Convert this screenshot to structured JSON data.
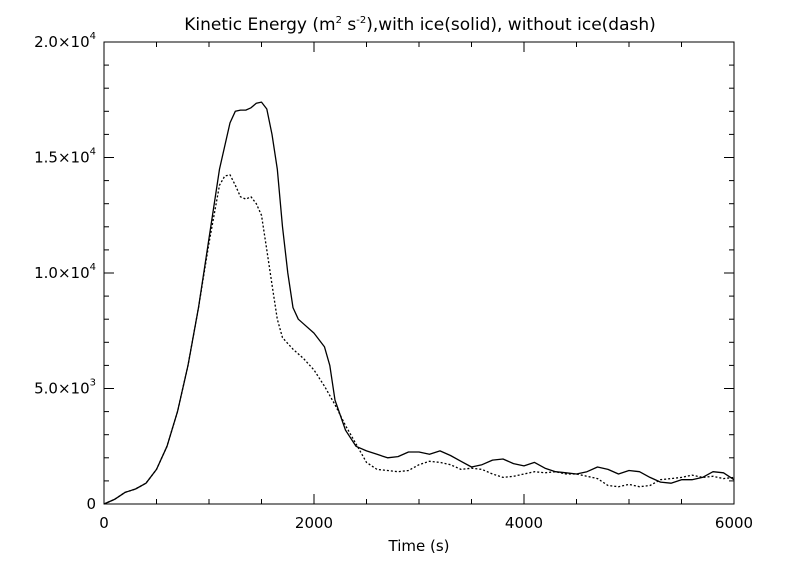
{
  "chart_data": {
    "type": "line",
    "title": {
      "part1": "Kinetic Energy (m",
      "exp1": "2",
      "part2": " s",
      "exp2": "-2",
      "part3": "),with ice(solid), without ice(dash)"
    },
    "xlabel": "Time (s)",
    "ylabel": "",
    "xlim": [
      0,
      6000
    ],
    "ylim": [
      0,
      20000
    ],
    "x_ticks": [
      {
        "value": 0,
        "label": "0"
      },
      {
        "value": 2000,
        "label": "2000"
      },
      {
        "value": 4000,
        "label": "4000"
      },
      {
        "value": 6000,
        "label": "6000"
      }
    ],
    "y_ticks": [
      {
        "value": 0,
        "mantissa": "0",
        "exp": ""
      },
      {
        "value": 5000,
        "mantissa": "5.0×10",
        "exp": "3"
      },
      {
        "value": 10000,
        "mantissa": "1.0×10",
        "exp": "4"
      },
      {
        "value": 15000,
        "mantissa": "1.5×10",
        "exp": "4"
      },
      {
        "value": 20000,
        "mantissa": "2.0×10",
        "exp": "4"
      }
    ],
    "grid": false,
    "colors": {
      "line": "#000000",
      "background": "#ffffff"
    },
    "series": [
      {
        "style": "solid",
        "points": [
          [
            0,
            0
          ],
          [
            100,
            200
          ],
          [
            200,
            500
          ],
          [
            300,
            650
          ],
          [
            400,
            900
          ],
          [
            500,
            1500
          ],
          [
            600,
            2500
          ],
          [
            700,
            4000
          ],
          [
            800,
            6000
          ],
          [
            900,
            8500
          ],
          [
            1000,
            11500
          ],
          [
            1100,
            14500
          ],
          [
            1200,
            16500
          ],
          [
            1250,
            17000
          ],
          [
            1300,
            17050
          ],
          [
            1350,
            17050
          ],
          [
            1400,
            17150
          ],
          [
            1450,
            17350
          ],
          [
            1500,
            17400
          ],
          [
            1550,
            17100
          ],
          [
            1600,
            16000
          ],
          [
            1650,
            14500
          ],
          [
            1700,
            12000
          ],
          [
            1750,
            10000
          ],
          [
            1800,
            8500
          ],
          [
            1850,
            8000
          ],
          [
            1900,
            7800
          ],
          [
            2000,
            7400
          ],
          [
            2100,
            6800
          ],
          [
            2150,
            6000
          ],
          [
            2200,
            4500
          ],
          [
            2300,
            3200
          ],
          [
            2400,
            2500
          ],
          [
            2500,
            2300
          ],
          [
            2600,
            2150
          ],
          [
            2700,
            2000
          ],
          [
            2800,
            2050
          ],
          [
            2900,
            2250
          ],
          [
            3000,
            2250
          ],
          [
            3100,
            2150
          ],
          [
            3200,
            2300
          ],
          [
            3300,
            2100
          ],
          [
            3400,
            1850
          ],
          [
            3500,
            1600
          ],
          [
            3600,
            1700
          ],
          [
            3700,
            1900
          ],
          [
            3800,
            1950
          ],
          [
            3900,
            1750
          ],
          [
            4000,
            1650
          ],
          [
            4100,
            1800
          ],
          [
            4200,
            1550
          ],
          [
            4300,
            1400
          ],
          [
            4400,
            1350
          ],
          [
            4500,
            1300
          ],
          [
            4600,
            1400
          ],
          [
            4700,
            1600
          ],
          [
            4800,
            1500
          ],
          [
            4900,
            1300
          ],
          [
            5000,
            1450
          ],
          [
            5100,
            1400
          ],
          [
            5200,
            1150
          ],
          [
            5300,
            950
          ],
          [
            5400,
            900
          ],
          [
            5500,
            1050
          ],
          [
            5600,
            1050
          ],
          [
            5700,
            1150
          ],
          [
            5800,
            1400
          ],
          [
            5900,
            1350
          ],
          [
            6000,
            1050
          ]
        ]
      },
      {
        "style": "dash",
        "points": [
          [
            0,
            0
          ],
          [
            100,
            200
          ],
          [
            200,
            500
          ],
          [
            300,
            650
          ],
          [
            400,
            900
          ],
          [
            500,
            1500
          ],
          [
            600,
            2500
          ],
          [
            700,
            4000
          ],
          [
            800,
            6000
          ],
          [
            900,
            8500
          ],
          [
            1000,
            11300
          ],
          [
            1100,
            13800
          ],
          [
            1150,
            14200
          ],
          [
            1200,
            14250
          ],
          [
            1250,
            13800
          ],
          [
            1300,
            13300
          ],
          [
            1350,
            13200
          ],
          [
            1400,
            13300
          ],
          [
            1450,
            13000
          ],
          [
            1500,
            12500
          ],
          [
            1550,
            11000
          ],
          [
            1600,
            9500
          ],
          [
            1650,
            8000
          ],
          [
            1700,
            7200
          ],
          [
            1800,
            6700
          ],
          [
            1900,
            6300
          ],
          [
            2000,
            5800
          ],
          [
            2100,
            5100
          ],
          [
            2200,
            4300
          ],
          [
            2300,
            3400
          ],
          [
            2400,
            2600
          ],
          [
            2500,
            1800
          ],
          [
            2600,
            1500
          ],
          [
            2700,
            1450
          ],
          [
            2800,
            1400
          ],
          [
            2900,
            1450
          ],
          [
            3000,
            1700
          ],
          [
            3100,
            1850
          ],
          [
            3200,
            1800
          ],
          [
            3300,
            1700
          ],
          [
            3400,
            1500
          ],
          [
            3500,
            1550
          ],
          [
            3600,
            1500
          ],
          [
            3700,
            1300
          ],
          [
            3800,
            1150
          ],
          [
            3900,
            1200
          ],
          [
            4000,
            1300
          ],
          [
            4100,
            1400
          ],
          [
            4200,
            1350
          ],
          [
            4300,
            1400
          ],
          [
            4400,
            1300
          ],
          [
            4500,
            1300
          ],
          [
            4600,
            1200
          ],
          [
            4700,
            1100
          ],
          [
            4800,
            800
          ],
          [
            4900,
            750
          ],
          [
            5000,
            850
          ],
          [
            5100,
            750
          ],
          [
            5200,
            800
          ],
          [
            5300,
            1050
          ],
          [
            5400,
            1100
          ],
          [
            5500,
            1150
          ],
          [
            5600,
            1250
          ],
          [
            5700,
            1150
          ],
          [
            5800,
            1200
          ],
          [
            5900,
            1100
          ],
          [
            6000,
            1150
          ]
        ]
      }
    ]
  }
}
